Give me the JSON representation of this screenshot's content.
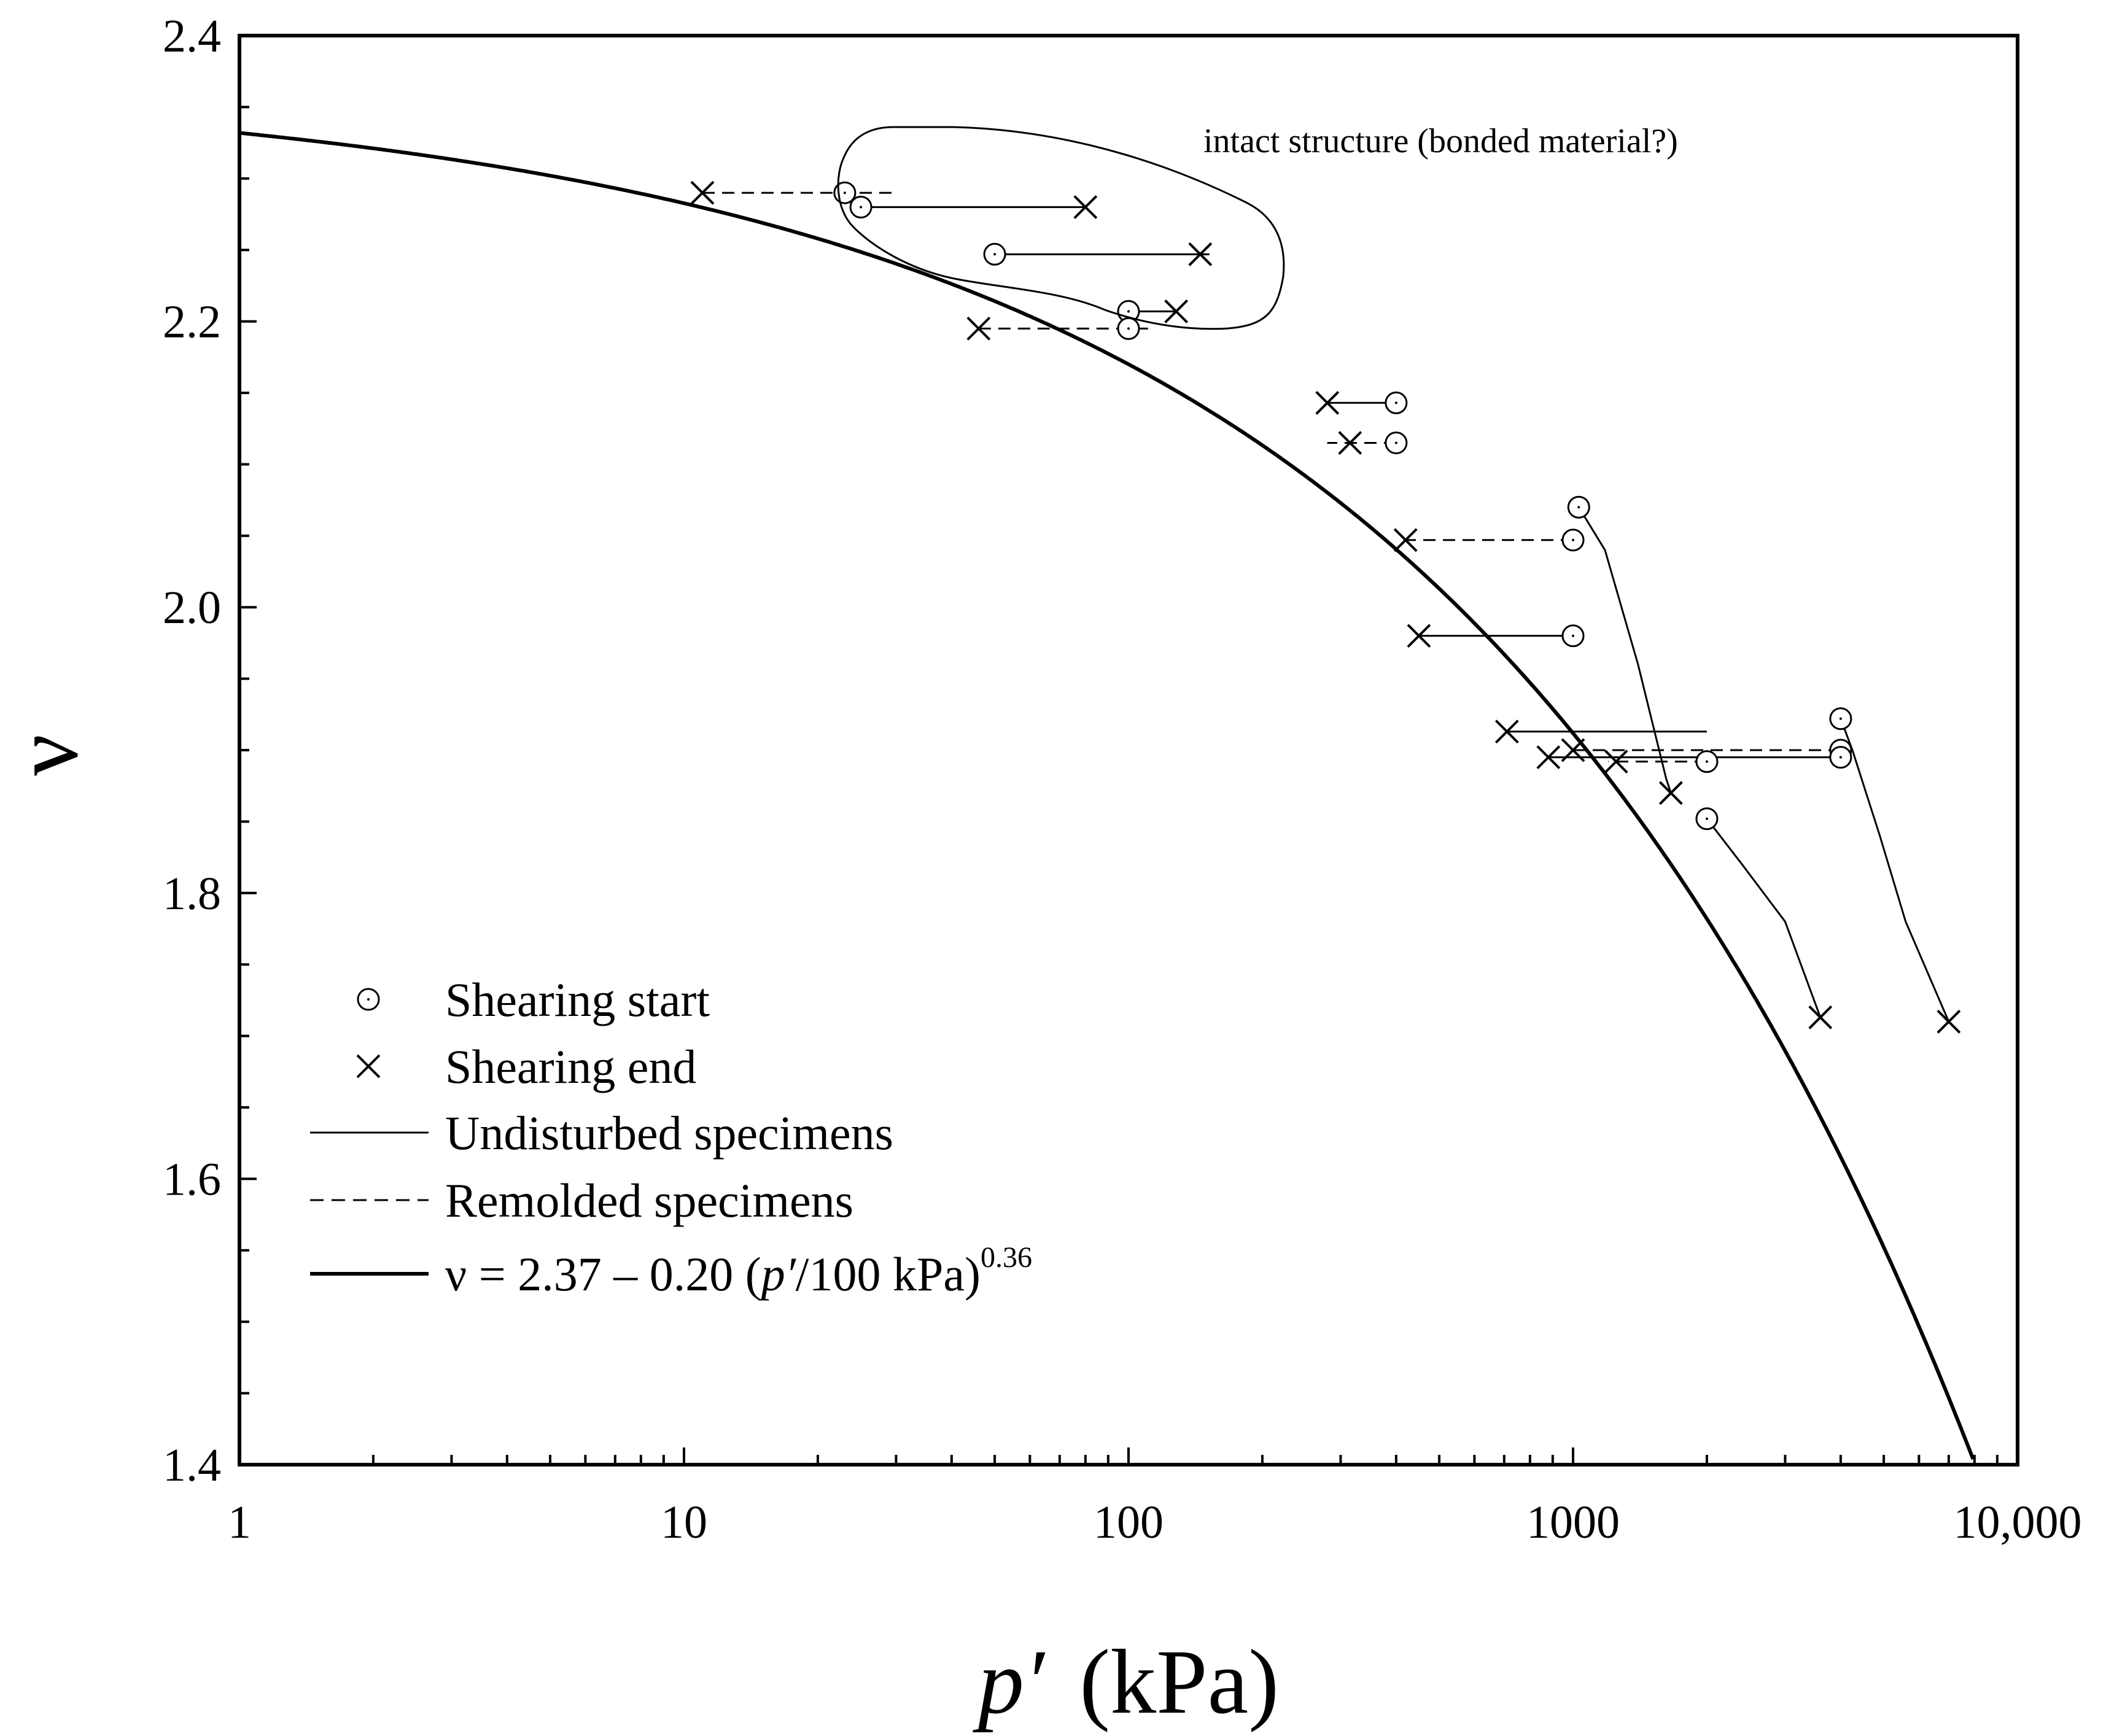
{
  "chart_data": {
    "type": "scatter",
    "title": "",
    "xlabel": "p′ (kPa)",
    "xlabel_italic_part": "p′",
    "xlabel_unit_part": "(kPa)",
    "ylabel": "ν",
    "xscale": "log",
    "xlim": [
      1,
      10000
    ],
    "ylim": [
      1.4,
      2.4
    ],
    "x_ticks": [
      1,
      10,
      100,
      1000,
      10000
    ],
    "x_tick_labels": [
      "1",
      "10",
      "100",
      "1000",
      "10,000"
    ],
    "y_ticks": [
      1.4,
      1.6,
      1.8,
      2.0,
      2.2,
      2.4
    ],
    "y_tick_labels": [
      "1.4",
      "1.6",
      "1.8",
      "2.0",
      "2.2",
      "2.4"
    ],
    "fitted_curve": {
      "label": "ν = 2.37 – 0.20 (p′/100 kPa)^0.36",
      "a": 2.37,
      "b": 0.2,
      "p_ref": 100,
      "exponent": 0.36
    },
    "series": [
      {
        "name": "Remolded",
        "style": "dashed",
        "path": [
          [
            11,
            2.29
          ],
          [
            23,
            2.29
          ],
          [
            30,
            2.29
          ]
        ],
        "start": [
          23,
          2.29
        ],
        "end": [
          11,
          2.29
        ]
      },
      {
        "name": "Undisturbed",
        "style": "solid",
        "path": [
          [
            25,
            2.28
          ],
          [
            80,
            2.28
          ]
        ],
        "start": [
          25,
          2.28
        ],
        "end": [
          80,
          2.28
        ]
      },
      {
        "name": "Undisturbed",
        "style": "solid",
        "path": [
          [
            50,
            2.247
          ],
          [
            145,
            2.247
          ],
          [
            152,
            2.247
          ]
        ],
        "start": [
          50,
          2.247
        ],
        "end": [
          145,
          2.247
        ]
      },
      {
        "name": "Undisturbed",
        "style": "solid",
        "path": [
          [
            100,
            2.207
          ],
          [
            128,
            2.207
          ]
        ],
        "start": [
          100,
          2.207
        ],
        "end": [
          128,
          2.207
        ]
      },
      {
        "name": "Remolded",
        "style": "dashed",
        "path": [
          [
            46,
            2.195
          ],
          [
            100,
            2.195
          ],
          [
            115,
            2.195
          ]
        ],
        "start": [
          100,
          2.195
        ],
        "end": [
          46,
          2.195
        ]
      },
      {
        "name": "Undisturbed",
        "style": "solid",
        "path": [
          [
            400,
            2.143
          ],
          [
            280,
            2.143
          ]
        ],
        "start": [
          400,
          2.143
        ],
        "end": [
          280,
          2.143
        ]
      },
      {
        "name": "Remolded",
        "style": "dashed",
        "path": [
          [
            400,
            2.115
          ],
          [
            280,
            2.115
          ]
        ],
        "start": [
          400,
          2.115
        ],
        "end": [
          315,
          2.115
        ]
      },
      {
        "name": "Remolded",
        "style": "dashed",
        "path": [
          [
            1000,
            2.047
          ],
          [
            420,
            2.047
          ]
        ],
        "start": [
          1000,
          2.047
        ],
        "end": [
          420,
          2.047
        ]
      },
      {
        "name": "Undisturbed",
        "style": "solid",
        "path": [
          [
            1000,
            1.98
          ],
          [
            450,
            1.98
          ]
        ],
        "start": [
          1000,
          1.98
        ],
        "end": [
          450,
          1.98
        ]
      },
      {
        "name": "Undisturbed",
        "style": "solid",
        "path": [
          [
            1030,
            2.07
          ],
          [
            1180,
            2.04
          ],
          [
            1400,
            1.96
          ],
          [
            1620,
            1.88
          ],
          [
            1660,
            1.87
          ]
        ],
        "start": [
          1030,
          2.07
        ],
        "end": [
          1660,
          1.87
        ]
      },
      {
        "name": "Undisturbed",
        "style": "solid",
        "path": [
          [
            710,
            1.913
          ],
          [
            2000,
            1.913
          ]
        ],
        "start": null,
        "end": [
          710,
          1.913
        ]
      },
      {
        "name": "Remolded",
        "style": "dashed",
        "path": [
          [
            1000,
            1.9
          ],
          [
            4000,
            1.9
          ]
        ],
        "start": [
          4000,
          1.9
        ],
        "end": [
          1000,
          1.9
        ]
      },
      {
        "name": "Undisturbed",
        "style": "solid",
        "path": [
          [
            4000,
            1.895
          ],
          [
            880,
            1.895
          ]
        ],
        "start": [
          4000,
          1.895
        ],
        "end": [
          880,
          1.895
        ]
      },
      {
        "name": "Remolded",
        "style": "dashed",
        "path": [
          [
            2000,
            1.892
          ],
          [
            1200,
            1.892
          ]
        ],
        "start": [
          2000,
          1.892
        ],
        "end": [
          1250,
          1.892
        ]
      },
      {
        "name": "Undisturbed",
        "style": "solid",
        "path": [
          [
            4000,
            1.922
          ],
          [
            4250,
            1.9
          ],
          [
            4900,
            1.84
          ],
          [
            5600,
            1.78
          ],
          [
            7000,
            1.71
          ]
        ],
        "start": [
          4000,
          1.922
        ],
        "end": [
          7000,
          1.71
        ]
      },
      {
        "name": "Undisturbed",
        "style": "solid",
        "path": [
          [
            2000,
            1.852
          ],
          [
            2400,
            1.82
          ],
          [
            3000,
            1.78
          ],
          [
            3600,
            1.713
          ]
        ],
        "start": [
          2000,
          1.852
        ],
        "end": [
          3600,
          1.713
        ]
      }
    ],
    "annotations": [
      {
        "text": "intact structure (bonded material?)",
        "points_to": [
          60,
          2.25
        ]
      }
    ],
    "legend": {
      "position": "bottom-left",
      "items": [
        {
          "marker": "circle",
          "label": "Shearing start"
        },
        {
          "marker": "cross",
          "label": "Shearing end"
        },
        {
          "marker": "thin-line",
          "label": "Undisturbed specimens"
        },
        {
          "marker": "dashed-line",
          "label": "Remolded specimens"
        },
        {
          "marker": "thick-line",
          "label_prefix": "ν = 2.37 – 0.20 (",
          "label_italic": "p′",
          "label_suffix": "/100 kPa)",
          "label_sup": "0.36"
        }
      ]
    },
    "grid": false
  }
}
